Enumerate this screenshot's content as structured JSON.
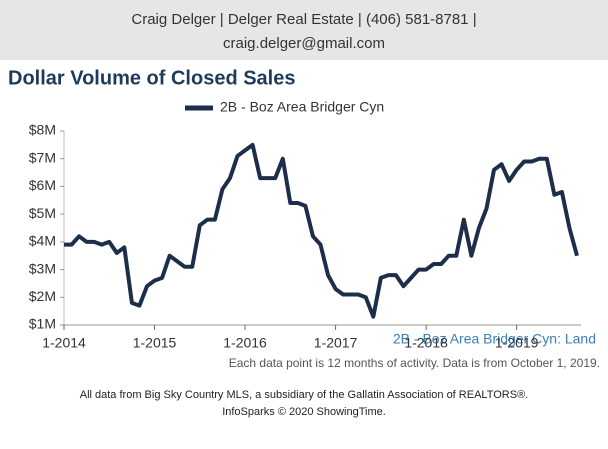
{
  "header": {
    "line1": "Craig Delger | Delger Real Estate | (406) 581-8781 |",
    "line2": "craig.delger@gmail.com"
  },
  "chart_data": {
    "type": "line",
    "title": "Dollar Volume of Closed Sales",
    "x": [
      "2014-01",
      "2014-02",
      "2014-03",
      "2014-04",
      "2014-05",
      "2014-06",
      "2014-07",
      "2014-08",
      "2014-09",
      "2014-10",
      "2014-11",
      "2014-12",
      "2015-01",
      "2015-02",
      "2015-03",
      "2015-04",
      "2015-05",
      "2015-06",
      "2015-07",
      "2015-08",
      "2015-09",
      "2015-10",
      "2015-11",
      "2015-12",
      "2016-01",
      "2016-02",
      "2016-03",
      "2016-04",
      "2016-05",
      "2016-06",
      "2016-07",
      "2016-08",
      "2016-09",
      "2016-10",
      "2016-11",
      "2016-12",
      "2017-01",
      "2017-02",
      "2017-03",
      "2017-04",
      "2017-05",
      "2017-06",
      "2017-07",
      "2017-08",
      "2017-09",
      "2017-10",
      "2017-11",
      "2017-12",
      "2018-01",
      "2018-02",
      "2018-03",
      "2018-04",
      "2018-05",
      "2018-06",
      "2018-07",
      "2018-08",
      "2018-09",
      "2018-10",
      "2018-11",
      "2018-12",
      "2019-01",
      "2019-02",
      "2019-03",
      "2019-04",
      "2019-05",
      "2019-06",
      "2019-07",
      "2019-08",
      "2019-09"
    ],
    "series": [
      {
        "name": "2B - Boz Area Bridger Cyn",
        "color": "#1c2e4a",
        "values": [
          3.9,
          3.9,
          4.2,
          4.0,
          4.0,
          3.9,
          4.0,
          3.6,
          3.8,
          1.8,
          1.7,
          2.4,
          2.6,
          2.7,
          3.5,
          3.3,
          3.1,
          3.1,
          4.6,
          4.8,
          4.8,
          5.9,
          6.3,
          7.1,
          7.3,
          7.5,
          6.3,
          6.3,
          6.3,
          7.0,
          5.4,
          5.4,
          5.3,
          4.2,
          3.9,
          2.8,
          2.3,
          2.1,
          2.1,
          2.1,
          2.0,
          1.3,
          2.7,
          2.8,
          2.8,
          2.4,
          2.7,
          3.0,
          3.0,
          3.2,
          3.2,
          3.5,
          3.5,
          4.8,
          3.5,
          4.5,
          5.2,
          6.6,
          6.8,
          6.2,
          6.6,
          6.9,
          6.9,
          7.0,
          7.0,
          5.7,
          5.8,
          4.5,
          3.5
        ]
      }
    ],
    "xlim": [
      "2014-01",
      "2019-09"
    ],
    "xticks": [
      {
        "value": "2014-01",
        "label": "1-2014"
      },
      {
        "value": "2015-01",
        "label": "1-2015"
      },
      {
        "value": "2016-01",
        "label": "1-2016"
      },
      {
        "value": "2017-01",
        "label": "1-2017"
      },
      {
        "value": "2018-01",
        "label": "1-2018"
      },
      {
        "value": "2019-01",
        "label": "1-2019"
      }
    ],
    "ylim": [
      1,
      8
    ],
    "yticks": [
      {
        "value": 1,
        "label": "$1M"
      },
      {
        "value": 2,
        "label": "$2M"
      },
      {
        "value": 3,
        "label": "$3M"
      },
      {
        "value": 4,
        "label": "$4M"
      },
      {
        "value": 5,
        "label": "$5M"
      },
      {
        "value": 6,
        "label": "$6M"
      },
      {
        "value": 7,
        "label": "$7M"
      },
      {
        "value": 8,
        "label": "$8M"
      }
    ],
    "annotation": "2B - Boz Area Bridger Cyn: Land",
    "note": "Each data point is 12 months of activity. Data is from October 1, 2019."
  },
  "footer": {
    "line1": "All data from Big Sky Country MLS, a subsidiary of the Gallatin Association of REALTORS®.",
    "line2": "InfoSparks © 2020 ShowingTime."
  }
}
